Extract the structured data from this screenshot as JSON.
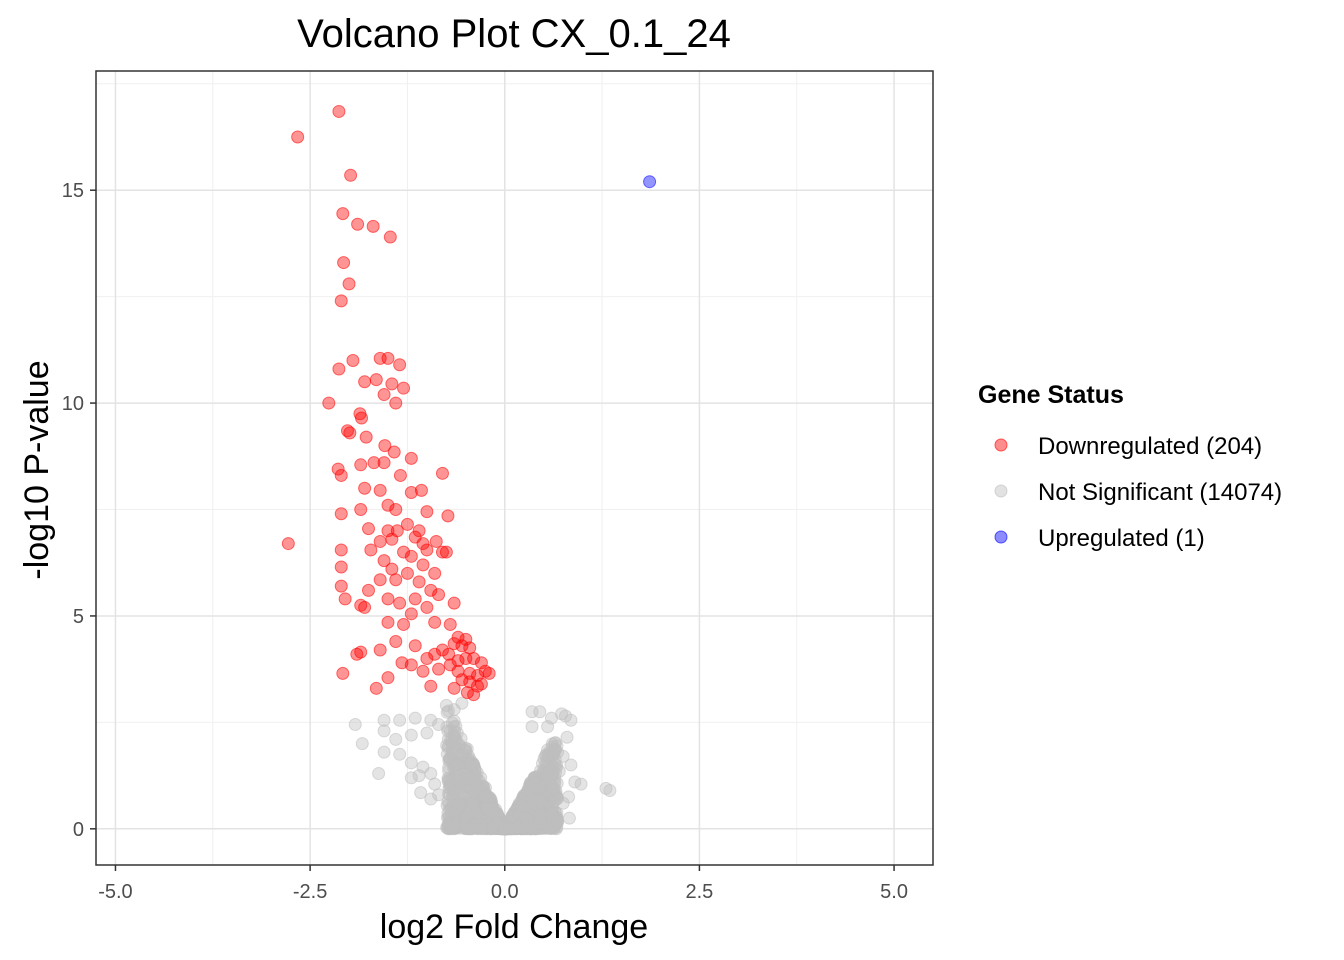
{
  "chart_data": {
    "type": "scatter",
    "title": "Volcano Plot CX_0.1_24",
    "xlabel": "log2 Fold Change",
    "ylabel": "-log10 P-value",
    "xlim": [
      -5.25,
      5.5
    ],
    "ylim": [
      -0.85,
      17.8
    ],
    "x_ticks": [
      -5.0,
      -2.5,
      0.0,
      2.5,
      5.0
    ],
    "x_tick_labels": [
      "-5.0",
      "-2.5",
      "0.0",
      "2.5",
      "5.0"
    ],
    "y_ticks": [
      0,
      5,
      10,
      15
    ],
    "y_tick_labels": [
      "0",
      "5",
      "10",
      "15"
    ],
    "grid": true,
    "legend": {
      "title": "Gene Status",
      "placement": "right",
      "entries": [
        {
          "label": "Downregulated (204)",
          "color": "#ff0000"
        },
        {
          "label": "Not Significant (14074)",
          "color": "#bebebe"
        },
        {
          "label": "Upregulated (1)",
          "color": "#0000ff"
        }
      ]
    },
    "series": [
      {
        "name": "Downregulated (204)",
        "color": "#ff0000",
        "points": [
          [
            -2.13,
            16.85
          ],
          [
            -2.66,
            16.25
          ],
          [
            -1.98,
            15.35
          ],
          [
            -2.08,
            14.45
          ],
          [
            -1.89,
            14.2
          ],
          [
            -1.69,
            14.15
          ],
          [
            -1.47,
            13.9
          ],
          [
            -2.07,
            13.3
          ],
          [
            -2.0,
            12.8
          ],
          [
            -2.1,
            12.4
          ],
          [
            -1.95,
            11.0
          ],
          [
            -1.6,
            11.05
          ],
          [
            -1.5,
            11.05
          ],
          [
            -1.35,
            10.9
          ],
          [
            -2.13,
            10.8
          ],
          [
            -1.8,
            10.5
          ],
          [
            -1.65,
            10.55
          ],
          [
            -1.45,
            10.45
          ],
          [
            -1.3,
            10.35
          ],
          [
            -1.55,
            10.2
          ],
          [
            -1.4,
            10.0
          ],
          [
            -2.26,
            10.0
          ],
          [
            -1.86,
            9.75
          ],
          [
            -1.84,
            9.65
          ],
          [
            -1.78,
            9.2
          ],
          [
            -1.54,
            9.0
          ],
          [
            -1.42,
            8.85
          ],
          [
            -2.02,
            9.35
          ],
          [
            -1.99,
            9.3
          ],
          [
            -2.14,
            8.45
          ],
          [
            -2.1,
            8.3
          ],
          [
            -1.85,
            8.55
          ],
          [
            -1.68,
            8.6
          ],
          [
            -1.55,
            8.6
          ],
          [
            -1.2,
            8.7
          ],
          [
            -0.8,
            8.35
          ],
          [
            -1.34,
            8.3
          ],
          [
            -1.8,
            8.0
          ],
          [
            -1.6,
            7.95
          ],
          [
            -1.2,
            7.9
          ],
          [
            -1.07,
            7.95
          ],
          [
            -1.5,
            7.6
          ],
          [
            -1.4,
            7.5
          ],
          [
            -1.85,
            7.5
          ],
          [
            -2.1,
            7.4
          ],
          [
            -1.75,
            7.05
          ],
          [
            -1.5,
            7.0
          ],
          [
            -1.38,
            7.0
          ],
          [
            -1.0,
            7.45
          ],
          [
            -0.73,
            7.35
          ],
          [
            -1.25,
            7.15
          ],
          [
            -1.1,
            7.0
          ],
          [
            -1.45,
            6.8
          ],
          [
            -1.6,
            6.75
          ],
          [
            -1.15,
            6.85
          ],
          [
            -1.05,
            6.7
          ],
          [
            -0.88,
            6.75
          ],
          [
            -1.3,
            6.5
          ],
          [
            -1.72,
            6.55
          ],
          [
            -2.1,
            6.55
          ],
          [
            -1.55,
            6.3
          ],
          [
            -1.2,
            6.4
          ],
          [
            -1.0,
            6.55
          ],
          [
            -0.8,
            6.5
          ],
          [
            -0.75,
            6.5
          ],
          [
            -2.78,
            6.7
          ],
          [
            -1.45,
            6.1
          ],
          [
            -1.25,
            6.0
          ],
          [
            -1.05,
            6.2
          ],
          [
            -0.9,
            6.0
          ],
          [
            -2.1,
            6.15
          ],
          [
            -1.6,
            5.85
          ],
          [
            -1.4,
            5.85
          ],
          [
            -1.1,
            5.8
          ],
          [
            -0.95,
            5.6
          ],
          [
            -2.1,
            5.7
          ],
          [
            -2.05,
            5.4
          ],
          [
            -1.75,
            5.6
          ],
          [
            -1.85,
            5.25
          ],
          [
            -1.8,
            5.2
          ],
          [
            -1.5,
            5.4
          ],
          [
            -1.35,
            5.3
          ],
          [
            -1.15,
            5.4
          ],
          [
            -0.85,
            5.5
          ],
          [
            -0.65,
            5.3
          ],
          [
            -1.0,
            5.2
          ],
          [
            -1.2,
            5.05
          ],
          [
            -1.5,
            4.85
          ],
          [
            -1.3,
            4.8
          ],
          [
            -0.9,
            4.85
          ],
          [
            -0.7,
            4.8
          ],
          [
            -0.6,
            4.5
          ],
          [
            -0.5,
            4.45
          ],
          [
            -0.65,
            4.35
          ],
          [
            -0.55,
            4.3
          ],
          [
            -0.45,
            4.25
          ],
          [
            -0.8,
            4.2
          ],
          [
            -1.4,
            4.4
          ],
          [
            -1.6,
            4.2
          ],
          [
            -1.85,
            4.15
          ],
          [
            -1.9,
            4.1
          ],
          [
            -1.15,
            4.3
          ],
          [
            -0.9,
            4.1
          ],
          [
            -0.72,
            4.1
          ],
          [
            -0.6,
            3.95
          ],
          [
            -0.5,
            4.0
          ],
          [
            -0.4,
            4.0
          ],
          [
            -0.3,
            3.9
          ],
          [
            -0.7,
            3.85
          ],
          [
            -1.0,
            4.0
          ],
          [
            -1.2,
            3.85
          ],
          [
            -1.05,
            3.7
          ],
          [
            -0.85,
            3.75
          ],
          [
            -0.6,
            3.7
          ],
          [
            -0.45,
            3.65
          ],
          [
            -0.35,
            3.6
          ],
          [
            -0.25,
            3.7
          ],
          [
            -0.55,
            3.5
          ],
          [
            -0.45,
            3.45
          ],
          [
            -0.35,
            3.35
          ],
          [
            -0.3,
            3.4
          ],
          [
            -0.65,
            3.3
          ],
          [
            -0.48,
            3.2
          ],
          [
            -0.4,
            3.15
          ],
          [
            -1.5,
            3.55
          ],
          [
            -1.65,
            3.3
          ],
          [
            -2.08,
            3.65
          ],
          [
            -0.2,
            3.65
          ],
          [
            -1.32,
            3.9
          ],
          [
            -0.95,
            3.35
          ]
        ]
      },
      {
        "name": "Not Significant (14074)",
        "color": "#bebebe",
        "points": [
          [
            -1.92,
            2.45
          ],
          [
            -1.55,
            2.55
          ],
          [
            -1.35,
            2.55
          ],
          [
            -1.15,
            2.6
          ],
          [
            -1.55,
            2.3
          ],
          [
            -1.4,
            2.1
          ],
          [
            -1.2,
            2.2
          ],
          [
            -1.0,
            2.25
          ],
          [
            -0.95,
            2.55
          ],
          [
            -0.85,
            2.45
          ],
          [
            -0.75,
            2.9
          ],
          [
            -0.65,
            2.8
          ],
          [
            -0.55,
            2.95
          ],
          [
            -1.55,
            1.8
          ],
          [
            -1.35,
            1.75
          ],
          [
            -1.2,
            1.55
          ],
          [
            -1.05,
            1.45
          ],
          [
            -0.95,
            1.3
          ],
          [
            -1.83,
            2.0
          ],
          [
            -1.62,
            1.3
          ],
          [
            -1.1,
            1.25
          ],
          [
            -0.9,
            1.05
          ],
          [
            -0.85,
            0.8
          ],
          [
            -0.95,
            0.7
          ],
          [
            -1.08,
            0.85
          ],
          [
            -1.2,
            1.2
          ],
          [
            0.35,
            2.75
          ],
          [
            0.45,
            2.75
          ],
          [
            0.6,
            2.6
          ],
          [
            0.78,
            2.65
          ],
          [
            0.85,
            2.55
          ],
          [
            0.73,
            2.7
          ],
          [
            0.55,
            2.4
          ],
          [
            0.35,
            2.4
          ],
          [
            0.8,
            2.15
          ],
          [
            0.55,
            1.85
          ],
          [
            0.65,
            1.85
          ],
          [
            0.75,
            1.7
          ],
          [
            0.85,
            1.5
          ],
          [
            0.7,
            1.35
          ],
          [
            0.9,
            1.1
          ],
          [
            0.98,
            1.05
          ],
          [
            0.82,
            0.75
          ],
          [
            0.75,
            0.6
          ],
          [
            0.83,
            0.25
          ],
          [
            1.3,
            0.95
          ],
          [
            1.35,
            0.9
          ]
        ]
      },
      {
        "name": "Upregulated (1)",
        "color": "#0000ff",
        "points": [
          [
            1.86,
            15.2
          ]
        ]
      }
    ]
  }
}
